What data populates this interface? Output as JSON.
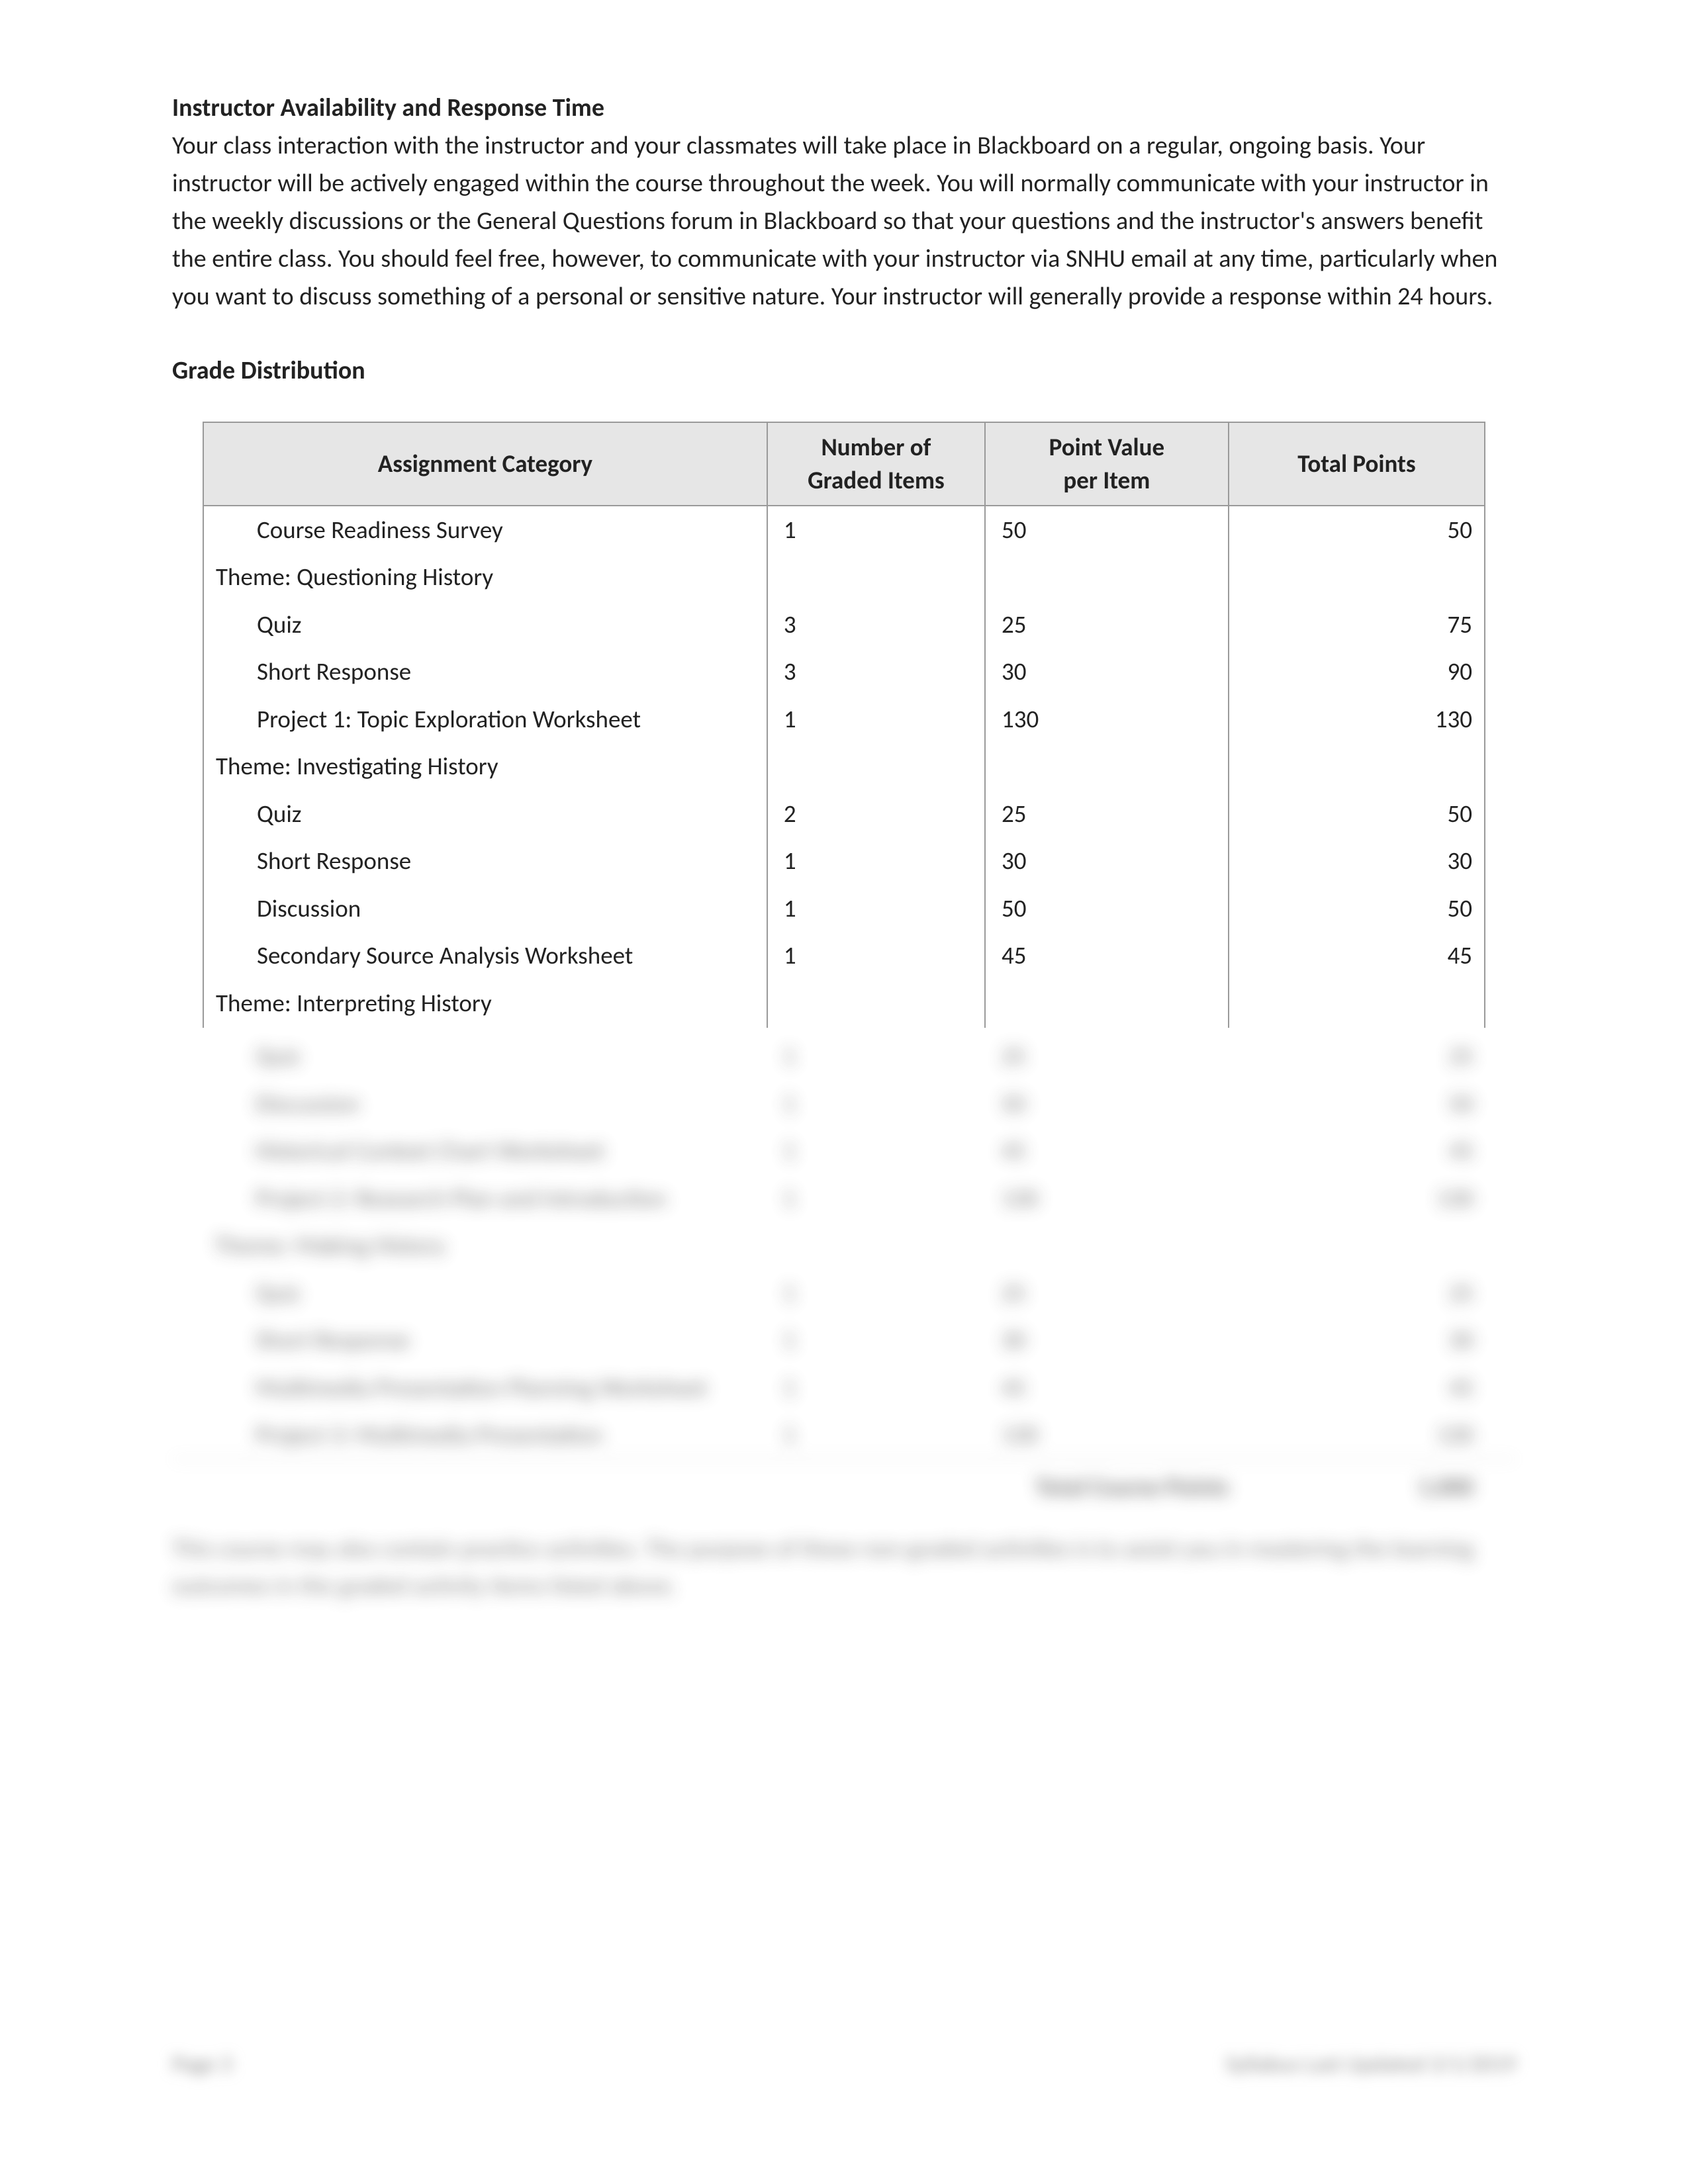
{
  "availability": {
    "heading": "Instructor Availability and Response Time",
    "body": "Your class interaction with the instructor and your classmates will take place in Blackboard on a regular, ongoing basis. Your instructor will be actively engaged within the course throughout the week. You will normally communicate with your instructor in the weekly discussions or the General Questions forum in Blackboard so that your questions and the instructor's answers benefit the entire class. You should feel free, however, to communicate with your instructor via SNHU email at any time, particularly when you want to discuss something of a personal or sensitive nature. Your instructor will generally provide a response within 24 hours."
  },
  "grade_distribution": {
    "heading": "Grade Distribution",
    "headers": {
      "c1": "Assignment Category",
      "c2_line1": "Number of",
      "c2_line2": "Graded Items",
      "c3_line1": "Point Value",
      "c3_line2": "per Item",
      "c4": "Total Points"
    },
    "rows": [
      {
        "type": "item",
        "label": "Course Readiness Survey",
        "num": "1",
        "per": "50",
        "total": "50"
      },
      {
        "type": "theme",
        "label": "Theme: Questioning History",
        "num": "",
        "per": "",
        "total": ""
      },
      {
        "type": "item",
        "label": "Quiz",
        "num": "3",
        "per": "25",
        "total": "75"
      },
      {
        "type": "item",
        "label": "Short Response",
        "num": "3",
        "per": "30",
        "total": "90"
      },
      {
        "type": "item",
        "label": "Project 1: Topic Exploration Worksheet",
        "num": "1",
        "per": "130",
        "total": "130"
      },
      {
        "type": "theme",
        "label": "Theme: Investigating History",
        "num": "",
        "per": "",
        "total": ""
      },
      {
        "type": "item",
        "label": "Quiz",
        "num": "2",
        "per": "25",
        "total": "50"
      },
      {
        "type": "item",
        "label": "Short Response",
        "num": "1",
        "per": "30",
        "total": "30"
      },
      {
        "type": "item",
        "label": "Discussion",
        "num": "1",
        "per": "50",
        "total": "50"
      },
      {
        "type": "item",
        "label": "Secondary Source Analysis Worksheet",
        "num": "1",
        "per": "45",
        "total": "45"
      },
      {
        "type": "theme",
        "label": "Theme: Interpreting History",
        "num": "",
        "per": "",
        "total": ""
      }
    ]
  },
  "blurred": {
    "rows": [
      {
        "type": "item",
        "label": "Quiz",
        "num": "1",
        "per": "25",
        "total": "25"
      },
      {
        "type": "item",
        "label": "Discussion",
        "num": "1",
        "per": "50",
        "total": "50"
      },
      {
        "type": "item",
        "label": "Historical Context Chart Worksheet",
        "num": "1",
        "per": "45",
        "total": "45"
      },
      {
        "type": "item",
        "label": "Project 2: Research Plan and Introduction",
        "num": "1",
        "per": "130",
        "total": "130"
      },
      {
        "type": "theme",
        "label": "Theme: Making History",
        "num": "",
        "per": "",
        "total": ""
      },
      {
        "type": "item",
        "label": "Quiz",
        "num": "1",
        "per": "25",
        "total": "25"
      },
      {
        "type": "item",
        "label": "Short Response",
        "num": "1",
        "per": "30",
        "total": "30"
      },
      {
        "type": "item",
        "label": "Multimedia Presentation Planning Worksheet",
        "num": "1",
        "per": "45",
        "total": "45"
      },
      {
        "type": "item",
        "label": "Project 3: Multimedia Presentation",
        "num": "1",
        "per": "130",
        "total": "130"
      }
    ],
    "total_label": "Total Course Points",
    "total_value": "1,000",
    "body": "This course may also contain practice activities. The purpose of these non-graded activities is to assist you in mastering the learning outcomes in the graded activity items listed above."
  },
  "footer": {
    "left": "Page 3",
    "right": "Syllabus Last Updated 3/1/2019"
  },
  "styles": {
    "header_bg": "#e6e6e6",
    "border_color": "#9a9a9a",
    "text_color": "#222222",
    "page_bg": "#ffffff",
    "font_title_pt": 38,
    "font_body_pt": 38
  }
}
